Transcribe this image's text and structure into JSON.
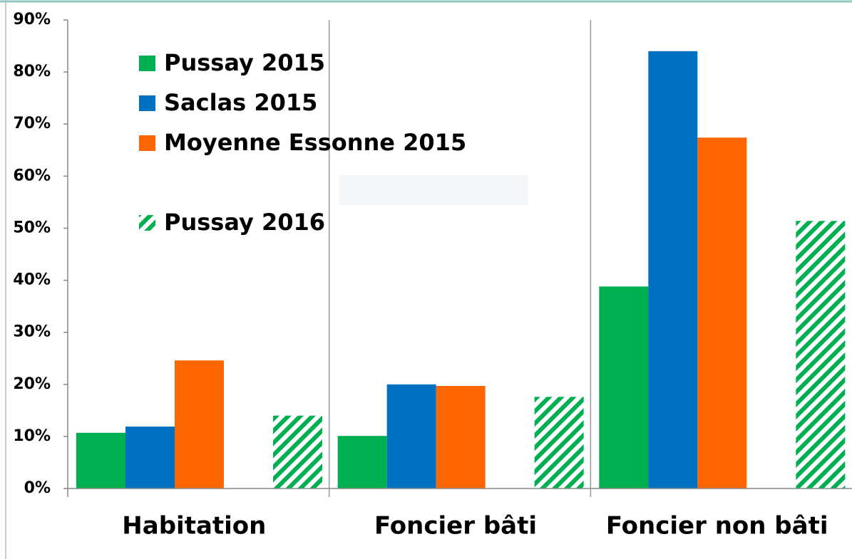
{
  "chart_data": {
    "type": "bar",
    "categories": [
      "Habitation",
      "Foncier bâti",
      "Foncier non bâti"
    ],
    "series": [
      {
        "name": "Pussay 2015",
        "color": "#00b050",
        "values": [
          10.7,
          10.1,
          38.8
        ]
      },
      {
        "name": "Saclas 2015",
        "color": "#0070c0",
        "values": [
          11.9,
          20.0,
          84.0
        ]
      },
      {
        "name": "Moyenne Essonne 2015",
        "color": "#ff6600",
        "values": [
          24.6,
          19.7,
          67.4
        ]
      },
      {
        "name": "Pussay 2016",
        "color": "#00b050",
        "pattern": "hatch",
        "values": [
          14.0,
          17.6,
          51.4
        ]
      }
    ],
    "ylim": [
      0,
      90
    ],
    "yticks": [
      {
        "value": 0,
        "label": "0%"
      },
      {
        "value": 10,
        "label": "10%"
      },
      {
        "value": 20,
        "label": "20%"
      },
      {
        "value": 30,
        "label": "30%"
      },
      {
        "value": 40,
        "label": "40%"
      },
      {
        "value": 50,
        "label": "50%"
      },
      {
        "value": 60,
        "label": "60%"
      },
      {
        "value": 70,
        "label": "70%"
      },
      {
        "value": 80,
        "label": "80%"
      },
      {
        "value": 90,
        "label": "90%"
      }
    ],
    "legend": "upper left"
  }
}
